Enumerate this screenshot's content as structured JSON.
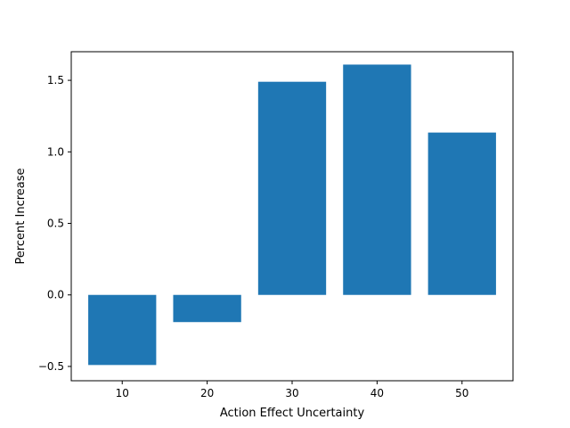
{
  "chart_data": {
    "type": "bar",
    "categories": [
      "10",
      "20",
      "30",
      "40",
      "50"
    ],
    "x": [
      10,
      20,
      30,
      40,
      50
    ],
    "values": [
      -0.49,
      -0.19,
      1.49,
      1.61,
      1.135
    ],
    "title": "",
    "xlabel": "Action Effect Uncertainty",
    "ylabel": "Percent Increase",
    "xlim": [
      4,
      56
    ],
    "ylim": [
      -0.6,
      1.7
    ],
    "yticks": [
      -0.5,
      0.0,
      0.5,
      1.0,
      1.5
    ],
    "ytick_labels": [
      "−0.5",
      "0.0",
      "0.5",
      "1.0",
      "1.5"
    ],
    "xticks": [
      10,
      20,
      30,
      40,
      50
    ],
    "xtick_labels": [
      "10",
      "20",
      "30",
      "40",
      "50"
    ],
    "bar_width": 8,
    "bar_color": "#1f77b4",
    "grid": false,
    "legend": "none"
  }
}
